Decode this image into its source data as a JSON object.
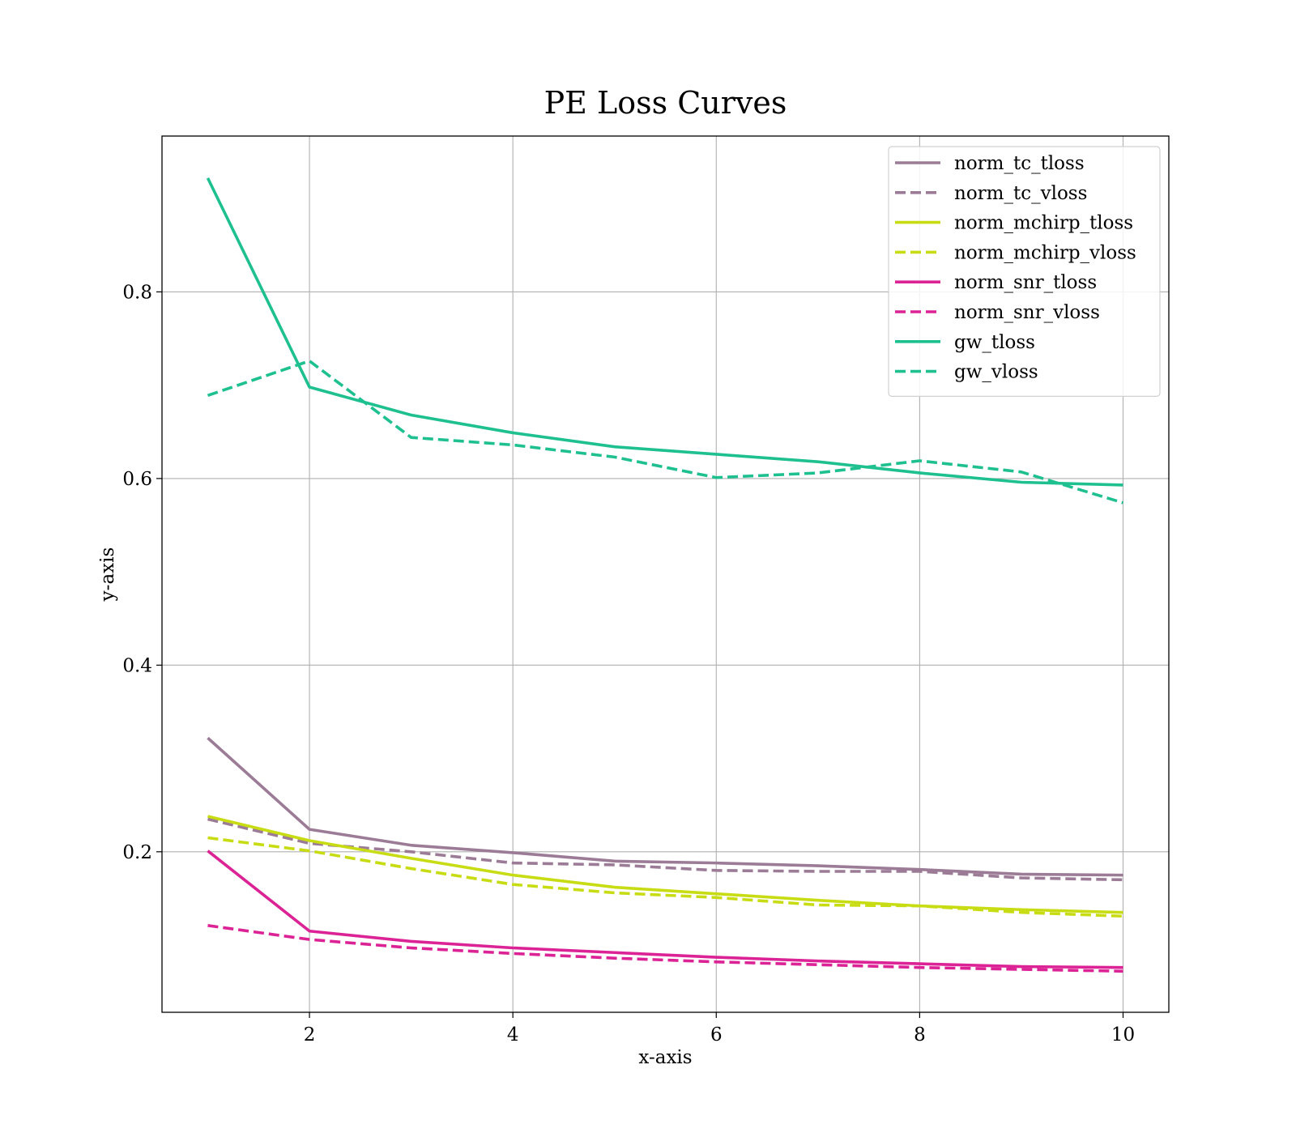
{
  "chart_data": {
    "type": "line",
    "title": "PE Loss Curves",
    "xlabel": "x-axis",
    "ylabel": "y-axis",
    "x": [
      1,
      2,
      3,
      4,
      5,
      6,
      7,
      8,
      9,
      10
    ],
    "xlim": [
      0.55,
      10.45
    ],
    "ylim": [
      0.028,
      0.967
    ],
    "xticks": [
      2,
      4,
      6,
      8,
      10
    ],
    "xtick_labels": [
      "2",
      "4",
      "6",
      "8",
      "10"
    ],
    "yticks": [
      0.2,
      0.4,
      0.6,
      0.8
    ],
    "ytick_labels": [
      "0.2",
      "0.4",
      "0.6",
      "0.8"
    ],
    "grid": true,
    "legend_position": "top-right",
    "series": [
      {
        "name": "norm_tc_tloss",
        "color": "#9b7b96",
        "style": "solid",
        "values": [
          0.322,
          0.224,
          0.207,
          0.199,
          0.19,
          0.188,
          0.185,
          0.181,
          0.176,
          0.175
        ]
      },
      {
        "name": "norm_tc_vloss",
        "color": "#9b7b96",
        "style": "dashed",
        "values": [
          0.235,
          0.209,
          0.2,
          0.188,
          0.186,
          0.18,
          0.179,
          0.179,
          0.172,
          0.17
        ]
      },
      {
        "name": "norm_mchirp_tloss",
        "color": "#c8dc14",
        "style": "solid",
        "values": [
          0.238,
          0.212,
          0.193,
          0.175,
          0.162,
          0.155,
          0.148,
          0.142,
          0.138,
          0.135
        ]
      },
      {
        "name": "norm_mchirp_vloss",
        "color": "#c8dc14",
        "style": "dashed",
        "values": [
          0.215,
          0.201,
          0.182,
          0.165,
          0.156,
          0.151,
          0.143,
          0.142,
          0.135,
          0.131
        ]
      },
      {
        "name": "norm_snr_tloss",
        "color": "#dc2396",
        "style": "solid",
        "values": [
          0.201,
          0.115,
          0.104,
          0.097,
          0.092,
          0.087,
          0.083,
          0.08,
          0.077,
          0.076
        ]
      },
      {
        "name": "norm_snr_vloss",
        "color": "#dc2396",
        "style": "dashed",
        "values": [
          0.121,
          0.106,
          0.097,
          0.091,
          0.086,
          0.082,
          0.079,
          0.076,
          0.074,
          0.072
        ]
      },
      {
        "name": "gw_tloss",
        "color": "#1ec090",
        "style": "solid",
        "values": [
          0.922,
          0.698,
          0.668,
          0.649,
          0.634,
          0.626,
          0.618,
          0.606,
          0.596,
          0.593
        ]
      },
      {
        "name": "gw_vloss",
        "color": "#1ec090",
        "style": "dashed",
        "values": [
          0.689,
          0.726,
          0.644,
          0.636,
          0.623,
          0.601,
          0.606,
          0.619,
          0.607,
          0.574
        ]
      }
    ]
  }
}
